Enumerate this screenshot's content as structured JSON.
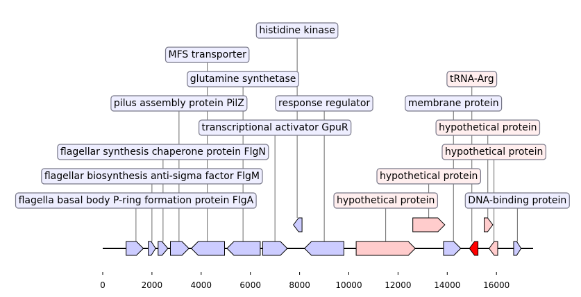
{
  "axis": {
    "ticks": [
      "0",
      "2000",
      "4000",
      "6000",
      "8000",
      "10000",
      "12000",
      "14000",
      "16000"
    ]
  },
  "colors": {
    "blue_fill": "#ccccff",
    "blue_label": "#eeeeff",
    "pink_fill": "#ffcccc",
    "pink_label": "#ffeeee",
    "red_fill": "#ff0000",
    "stroke": "#000000",
    "label_border": "#777788"
  },
  "features": [
    {
      "name": "gene-1",
      "color": "blue",
      "strand": "plus",
      "row": "main",
      "start": 950,
      "end": 1650
    },
    {
      "name": "gene-2",
      "color": "blue",
      "strand": "plus",
      "row": "main",
      "start": 1850,
      "end": 2150
    },
    {
      "name": "gene-3",
      "color": "blue",
      "strand": "plus",
      "row": "main",
      "start": 2250,
      "end": 2650
    },
    {
      "name": "gene-4",
      "color": "blue",
      "strand": "plus",
      "row": "main",
      "start": 2750,
      "end": 3500
    },
    {
      "name": "gene-5",
      "color": "blue",
      "strand": "minus",
      "row": "main",
      "start": 3600,
      "end": 4950
    },
    {
      "name": "gene-6",
      "color": "blue",
      "strand": "minus",
      "row": "main",
      "start": 5050,
      "end": 6400
    },
    {
      "name": "gene-7",
      "color": "blue",
      "strand": "plus",
      "row": "main",
      "start": 6500,
      "end": 7500
    },
    {
      "name": "gene-8",
      "color": "blue",
      "strand": "minus",
      "row": "up",
      "start": 7750,
      "end": 8100
    },
    {
      "name": "gene-9",
      "color": "blue",
      "strand": "minus",
      "row": "main",
      "start": 8200,
      "end": 9800
    },
    {
      "name": "gene-10",
      "color": "pink",
      "strand": "plus",
      "row": "main",
      "start": 10300,
      "end": 12700
    },
    {
      "name": "gene-11",
      "color": "pink",
      "strand": "plus",
      "row": "up",
      "start": 12600,
      "end": 13900
    },
    {
      "name": "gene-12",
      "color": "blue",
      "strand": "plus",
      "row": "main",
      "start": 13850,
      "end": 14550
    },
    {
      "name": "gene-13",
      "color": "red",
      "strand": "minus",
      "row": "main",
      "start": 14900,
      "end": 15250
    },
    {
      "name": "gene-14",
      "color": "pink",
      "strand": "plus",
      "row": "up",
      "start": 15500,
      "end": 15850
    },
    {
      "name": "gene-15",
      "color": "pink",
      "strand": "minus",
      "row": "main",
      "start": 15700,
      "end": 16050
    },
    {
      "name": "gene-16",
      "color": "blue",
      "strand": "plus",
      "row": "main",
      "start": 16700,
      "end": 17000
    }
  ],
  "labels": [
    {
      "text": "flagella basal body P-ring formation protein FlgA",
      "color": "blue",
      "pos": 1350
    },
    {
      "text": "flagellar biosynthesis anti-sigma factor FlgM",
      "color": "blue",
      "pos": 2000
    },
    {
      "text": "flagellar synthesis chaperone protein FlgN",
      "color": "blue",
      "pos": 2450
    },
    {
      "text": "pilus assembly protein PilZ",
      "color": "blue",
      "pos": 3100
    },
    {
      "text": "MFS transporter",
      "color": "blue",
      "pos": 4250
    },
    {
      "text": "glutamine synthetase",
      "color": "blue",
      "pos": 5700
    },
    {
      "text": "transcriptional activator GpuR",
      "color": "blue",
      "pos": 7000
    },
    {
      "text": "histidine kinase",
      "color": "blue",
      "pos": 7900
    },
    {
      "text": "response regulator",
      "color": "blue",
      "pos": 9000
    },
    {
      "text": "hypothetical protein",
      "color": "pink",
      "pos": 11500
    },
    {
      "text": "hypothetical protein",
      "color": "pink",
      "pos": 13250
    },
    {
      "text": "membrane protein",
      "color": "blue",
      "pos": 14250
    },
    {
      "text": "tRNA-Arg",
      "color": "pink",
      "pos": 15000
    },
    {
      "text": "hypothetical protein",
      "color": "pink",
      "pos": 15650
    },
    {
      "text": "hypothetical protein",
      "color": "pink",
      "pos": 15900
    },
    {
      "text": "DNA-binding protein",
      "color": "blue",
      "pos": 16850
    }
  ]
}
